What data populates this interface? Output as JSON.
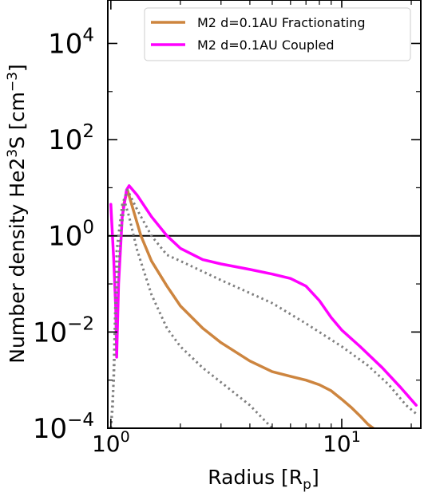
{
  "chart_data": {
    "type": "line",
    "xlabel": "Radius [R",
    "xlabel_sub": "p",
    "xlabel_end": "]",
    "ylabel": "Number density He2",
    "ylabel_sup": "3",
    "ylabel_mid": "S [cm",
    "ylabel_sup2": "−3",
    "ylabel_end": "]",
    "xscale": "log",
    "yscale": "log",
    "xlim": [
      0.97,
      22
    ],
    "ylim": [
      0.0001,
      80000
    ],
    "x_ticks": [
      {
        "value": 1,
        "base": "10",
        "exp": "0"
      },
      {
        "value": 10,
        "base": "10",
        "exp": "1"
      }
    ],
    "y_ticks": [
      {
        "value": 0.0001,
        "base": "10",
        "exp": "−4"
      },
      {
        "value": 0.01,
        "base": "10",
        "exp": "−2"
      },
      {
        "value": 1,
        "base": "10",
        "exp": "0"
      },
      {
        "value": 100,
        "base": "10",
        "exp": "2"
      },
      {
        "value": 10000,
        "base": "10",
        "exp": "4"
      }
    ],
    "legend_position": "top-right",
    "hline": {
      "y": 1,
      "color": "#000000"
    },
    "series": [
      {
        "name": "M2 d=0.1AU Fractionating",
        "color": "#CD853F",
        "style": "solid",
        "in_legend": true,
        "points": [
          [
            1.13,
            4.0
          ],
          [
            1.18,
            9.0
          ],
          [
            1.25,
            3.5
          ],
          [
            1.35,
            1.0
          ],
          [
            1.5,
            0.3
          ],
          [
            1.75,
            0.09
          ],
          [
            2.0,
            0.035
          ],
          [
            2.5,
            0.012
          ],
          [
            3.0,
            0.006
          ],
          [
            4.0,
            0.0025
          ],
          [
            5.0,
            0.0015
          ],
          [
            6.0,
            0.0012
          ],
          [
            7.0,
            0.001
          ],
          [
            8.0,
            0.0008
          ],
          [
            9.0,
            0.0006
          ],
          [
            10.0,
            0.0004
          ],
          [
            11.0,
            0.00027
          ],
          [
            12.0,
            0.00018
          ],
          [
            13.0,
            0.00012
          ],
          [
            13.7,
            0.0001
          ]
        ]
      },
      {
        "name": "M2 d=0.1AU Coupled",
        "color": "#FF00FF",
        "style": "solid",
        "in_legend": true,
        "points": [
          [
            1.0,
            4.5
          ],
          [
            1.03,
            0.3
          ],
          [
            1.05,
            0.03
          ],
          [
            1.06,
            0.003
          ],
          [
            1.08,
            0.1
          ],
          [
            1.12,
            2.5
          ],
          [
            1.17,
            9.0
          ],
          [
            1.2,
            11.0
          ],
          [
            1.3,
            7.0
          ],
          [
            1.5,
            2.5
          ],
          [
            1.75,
            1.0
          ],
          [
            2.0,
            0.55
          ],
          [
            2.5,
            0.32
          ],
          [
            3.0,
            0.26
          ],
          [
            4.0,
            0.2
          ],
          [
            5.0,
            0.16
          ],
          [
            6.0,
            0.13
          ],
          [
            7.0,
            0.09
          ],
          [
            8.0,
            0.045
          ],
          [
            9.0,
            0.02
          ],
          [
            10.0,
            0.011
          ],
          [
            12.0,
            0.005
          ],
          [
            15.0,
            0.0018
          ],
          [
            18.0,
            0.0007
          ],
          [
            21.0,
            0.0003
          ]
        ]
      },
      {
        "name": "",
        "color": "#808080",
        "style": "dotted",
        "in_legend": false,
        "points": [
          [
            1.0,
            0.0001
          ],
          [
            1.03,
            0.001
          ],
          [
            1.06,
            0.05
          ],
          [
            1.1,
            1.0
          ],
          [
            1.15,
            5.0
          ],
          [
            1.2,
            2.5
          ],
          [
            1.3,
            0.5
          ],
          [
            1.5,
            0.06
          ],
          [
            1.75,
            0.012
          ],
          [
            2.0,
            0.005
          ],
          [
            2.5,
            0.0018
          ],
          [
            3.0,
            0.0009
          ],
          [
            4.0,
            0.0003
          ],
          [
            5.0,
            0.0001
          ]
        ]
      },
      {
        "name": "",
        "color": "#808080",
        "style": "dotted",
        "in_legend": false,
        "points": [
          [
            1.0,
            0.0001
          ],
          [
            1.02,
            0.0003
          ],
          [
            1.06,
            0.5
          ],
          [
            1.12,
            4.5
          ],
          [
            1.18,
            9.0
          ],
          [
            1.3,
            3.5
          ],
          [
            1.5,
            1.0
          ],
          [
            1.75,
            0.4
          ],
          [
            2.0,
            0.3
          ],
          [
            3.0,
            0.12
          ],
          [
            5.0,
            0.04
          ],
          [
            7.0,
            0.015
          ],
          [
            10.0,
            0.005
          ],
          [
            13.0,
            0.002
          ],
          [
            16.0,
            0.0008
          ],
          [
            19.0,
            0.0003
          ],
          [
            21.0,
            0.0002
          ]
        ]
      }
    ]
  }
}
